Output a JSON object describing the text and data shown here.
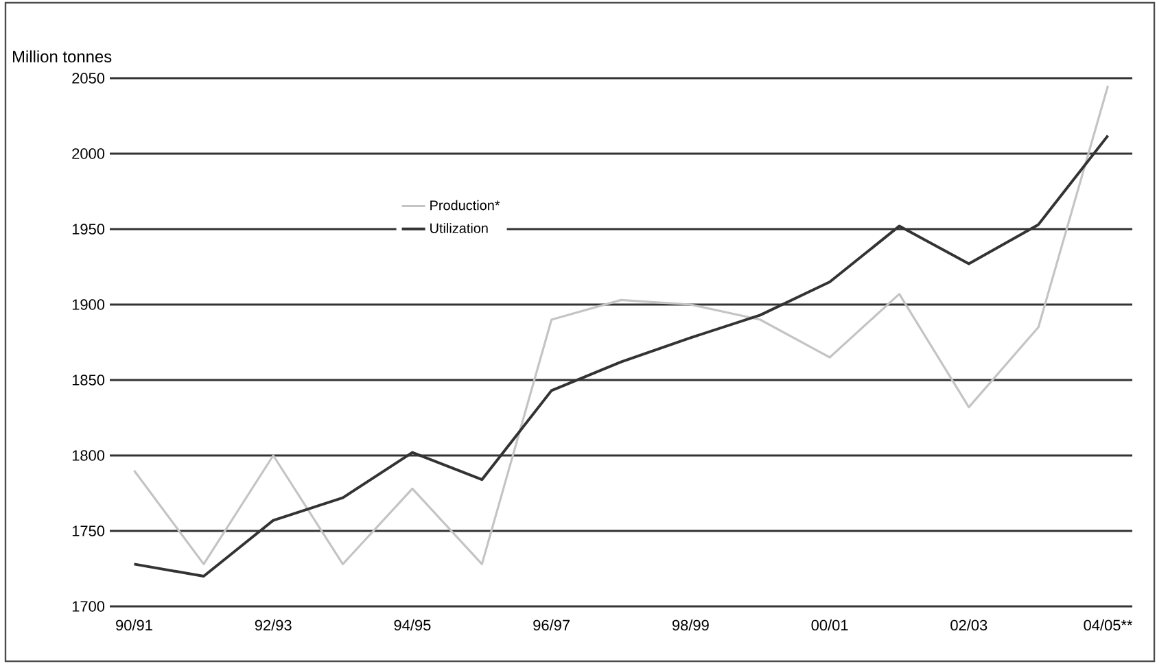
{
  "chart_data": {
    "type": "line",
    "ylabel": "Million tonnes",
    "categories": [
      "90/91",
      null,
      "92/93",
      null,
      "94/95",
      null,
      "96/97",
      null,
      "98/99",
      null,
      "00/01",
      null,
      "02/03",
      null,
      "04/05**"
    ],
    "series": [
      {
        "name": "Production*",
        "color": "#c4c4c4",
        "values": [
          1790,
          1728,
          1800,
          1728,
          1778,
          1728,
          1890,
          1903,
          1900,
          1890,
          1865,
          1907,
          1832,
          1885,
          2045
        ]
      },
      {
        "name": "Utilization",
        "color": "#333333",
        "values": [
          1728,
          1720,
          1757,
          1772,
          1802,
          1784,
          1843,
          1862,
          1878,
          1893,
          1915,
          1952,
          1927,
          1953,
          2012
        ]
      }
    ],
    "ylim": [
      1700,
      2050
    ],
    "yticks": [
      1700,
      1750,
      1800,
      1850,
      1900,
      1950,
      2000,
      2050
    ],
    "grid": "y",
    "legend": "top left",
    "line_style": "solid",
    "marker": "none"
  }
}
